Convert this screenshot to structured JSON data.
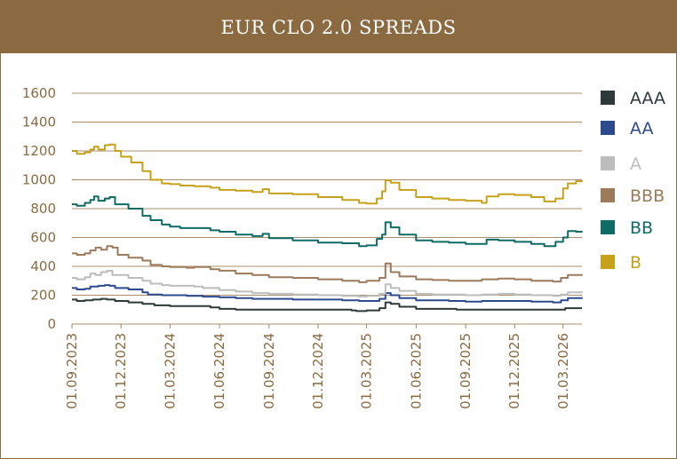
{
  "title": "EUR CLO 2.0 SPREADS",
  "colors": {
    "brand": "#8b6a42",
    "axis_text": "#8b6a42",
    "grid": "#8b6a42"
  },
  "chart_data": {
    "type": "line",
    "title": "EUR CLO 2.0 SPREADS",
    "xlabel": "",
    "ylabel": "",
    "ylim": [
      0,
      1600
    ],
    "yticks": [
      0,
      200,
      400,
      600,
      800,
      1000,
      1200,
      1400,
      1600
    ],
    "xlim": [
      "2023-09-01",
      "2026-04-05"
    ],
    "xticks": [
      {
        "date": "2023-09-01",
        "label": "01.09.2023"
      },
      {
        "date": "2023-12-01",
        "label": "01.12.2023"
      },
      {
        "date": "2024-03-01",
        "label": "01.03.2024"
      },
      {
        "date": "2024-06-01",
        "label": "01.06.2024"
      },
      {
        "date": "2024-09-01",
        "label": "01.09.2024"
      },
      {
        "date": "2024-12-01",
        "label": "01.12.2024"
      },
      {
        "date": "2025-03-01",
        "label": "01.03.2025"
      },
      {
        "date": "2025-06-01",
        "label": "01.06.2025"
      },
      {
        "date": "2025-09-01",
        "label": "01.09.2025"
      },
      {
        "date": "2025-12-01",
        "label": "01.12.2025"
      },
      {
        "date": "2026-03-01",
        "label": "01.03.2026"
      }
    ],
    "grid": "horizontal",
    "legend_position": "right",
    "series": [
      {
        "name": "AAA",
        "color": "#2e3a3a",
        "points": [
          [
            "2023-09-01",
            170
          ],
          [
            "2023-09-10",
            160
          ],
          [
            "2023-09-25",
            165
          ],
          [
            "2023-10-10",
            170
          ],
          [
            "2023-10-25",
            175
          ],
          [
            "2023-11-05",
            170
          ],
          [
            "2023-11-20",
            160
          ],
          [
            "2023-12-15",
            150
          ],
          [
            "2024-01-10",
            140
          ],
          [
            "2024-02-01",
            130
          ],
          [
            "2024-03-01",
            125
          ],
          [
            "2024-04-15",
            125
          ],
          [
            "2024-05-15",
            115
          ],
          [
            "2024-06-01",
            105
          ],
          [
            "2024-07-01",
            100
          ],
          [
            "2024-08-01",
            100
          ],
          [
            "2024-09-01",
            100
          ],
          [
            "2024-10-15",
            100
          ],
          [
            "2024-12-01",
            100
          ],
          [
            "2025-01-15",
            100
          ],
          [
            "2025-02-01",
            95
          ],
          [
            "2025-02-10",
            90
          ],
          [
            "2025-03-01",
            95
          ],
          [
            "2025-03-25",
            110
          ],
          [
            "2025-04-05",
            150
          ],
          [
            "2025-04-15",
            140
          ],
          [
            "2025-05-01",
            120
          ],
          [
            "2025-06-01",
            105
          ],
          [
            "2025-07-15",
            105
          ],
          [
            "2025-08-15",
            100
          ],
          [
            "2025-09-01",
            100
          ],
          [
            "2025-10-01",
            100
          ],
          [
            "2025-11-01",
            100
          ],
          [
            "2025-12-01",
            100
          ],
          [
            "2026-01-01",
            100
          ],
          [
            "2026-02-01",
            100
          ],
          [
            "2026-02-20",
            100
          ],
          [
            "2026-03-05",
            110
          ],
          [
            "2026-04-05",
            110
          ]
        ]
      },
      {
        "name": "AA",
        "color": "#2e4a8e",
        "points": [
          [
            "2023-09-01",
            250
          ],
          [
            "2023-09-10",
            240
          ],
          [
            "2023-09-25",
            245
          ],
          [
            "2023-10-05",
            260
          ],
          [
            "2023-10-20",
            265
          ],
          [
            "2023-11-01",
            270
          ],
          [
            "2023-11-10",
            265
          ],
          [
            "2023-11-20",
            250
          ],
          [
            "2023-12-15",
            240
          ],
          [
            "2024-01-10",
            220
          ],
          [
            "2024-01-20",
            205
          ],
          [
            "2024-02-15",
            200
          ],
          [
            "2024-03-01",
            200
          ],
          [
            "2024-04-01",
            195
          ],
          [
            "2024-05-01",
            190
          ],
          [
            "2024-06-01",
            185
          ],
          [
            "2024-07-01",
            180
          ],
          [
            "2024-08-01",
            175
          ],
          [
            "2024-09-01",
            175
          ],
          [
            "2024-10-15",
            170
          ],
          [
            "2024-12-01",
            170
          ],
          [
            "2025-01-15",
            165
          ],
          [
            "2025-02-15",
            160
          ],
          [
            "2025-03-01",
            160
          ],
          [
            "2025-03-25",
            175
          ],
          [
            "2025-04-05",
            215
          ],
          [
            "2025-04-15",
            200
          ],
          [
            "2025-05-01",
            180
          ],
          [
            "2025-06-01",
            165
          ],
          [
            "2025-07-01",
            165
          ],
          [
            "2025-08-01",
            160
          ],
          [
            "2025-09-01",
            155
          ],
          [
            "2025-10-01",
            160
          ],
          [
            "2025-11-01",
            160
          ],
          [
            "2025-12-01",
            160
          ],
          [
            "2026-01-01",
            155
          ],
          [
            "2026-02-10",
            150
          ],
          [
            "2026-02-25",
            165
          ],
          [
            "2026-03-10",
            180
          ],
          [
            "2026-04-05",
            185
          ]
        ]
      },
      {
        "name": "A",
        "color": "#bdbdbd",
        "points": [
          [
            "2023-09-01",
            320
          ],
          [
            "2023-09-10",
            310
          ],
          [
            "2023-09-25",
            325
          ],
          [
            "2023-10-05",
            350
          ],
          [
            "2023-10-15",
            340
          ],
          [
            "2023-10-25",
            360
          ],
          [
            "2023-11-05",
            370
          ],
          [
            "2023-11-15",
            340
          ],
          [
            "2023-12-15",
            320
          ],
          [
            "2024-01-10",
            300
          ],
          [
            "2024-01-25",
            280
          ],
          [
            "2024-02-15",
            270
          ],
          [
            "2024-03-01",
            265
          ],
          [
            "2024-04-15",
            260
          ],
          [
            "2024-05-01",
            250
          ],
          [
            "2024-06-01",
            235
          ],
          [
            "2024-07-01",
            225
          ],
          [
            "2024-08-01",
            215
          ],
          [
            "2024-09-01",
            210
          ],
          [
            "2024-10-15",
            205
          ],
          [
            "2024-12-01",
            200
          ],
          [
            "2025-01-15",
            195
          ],
          [
            "2025-02-15",
            190
          ],
          [
            "2025-03-01",
            195
          ],
          [
            "2025-03-25",
            210
          ],
          [
            "2025-04-05",
            275
          ],
          [
            "2025-04-15",
            250
          ],
          [
            "2025-05-01",
            230
          ],
          [
            "2025-06-01",
            210
          ],
          [
            "2025-07-01",
            205
          ],
          [
            "2025-08-01",
            205
          ],
          [
            "2025-09-01",
            200
          ],
          [
            "2025-10-01",
            205
          ],
          [
            "2025-11-01",
            210
          ],
          [
            "2025-12-01",
            205
          ],
          [
            "2026-01-01",
            200
          ],
          [
            "2026-02-10",
            195
          ],
          [
            "2026-02-25",
            205
          ],
          [
            "2026-03-10",
            220
          ],
          [
            "2026-04-05",
            225
          ]
        ]
      },
      {
        "name": "BBB",
        "color": "#9b7b5b",
        "points": [
          [
            "2023-09-01",
            490
          ],
          [
            "2023-09-10",
            480
          ],
          [
            "2023-09-25",
            490
          ],
          [
            "2023-10-05",
            510
          ],
          [
            "2023-10-15",
            530
          ],
          [
            "2023-10-25",
            515
          ],
          [
            "2023-11-05",
            540
          ],
          [
            "2023-11-15",
            530
          ],
          [
            "2023-11-25",
            480
          ],
          [
            "2023-12-15",
            460
          ],
          [
            "2024-01-10",
            440
          ],
          [
            "2024-01-25",
            410
          ],
          [
            "2024-02-15",
            400
          ],
          [
            "2024-03-01",
            395
          ],
          [
            "2024-04-01",
            390
          ],
          [
            "2024-04-15",
            395
          ],
          [
            "2024-05-15",
            380
          ],
          [
            "2024-06-01",
            370
          ],
          [
            "2024-07-01",
            350
          ],
          [
            "2024-08-01",
            340
          ],
          [
            "2024-08-20",
            340
          ],
          [
            "2024-09-01",
            325
          ],
          [
            "2024-10-15",
            320
          ],
          [
            "2024-12-01",
            310
          ],
          [
            "2025-01-15",
            300
          ],
          [
            "2025-02-15",
            290
          ],
          [
            "2025-03-01",
            300
          ],
          [
            "2025-03-25",
            320
          ],
          [
            "2025-04-05",
            420
          ],
          [
            "2025-04-15",
            360
          ],
          [
            "2025-05-01",
            330
          ],
          [
            "2025-06-01",
            310
          ],
          [
            "2025-07-01",
            305
          ],
          [
            "2025-08-01",
            300
          ],
          [
            "2025-09-01",
            300
          ],
          [
            "2025-10-01",
            310
          ],
          [
            "2025-11-01",
            315
          ],
          [
            "2025-12-01",
            310
          ],
          [
            "2026-01-01",
            300
          ],
          [
            "2026-02-10",
            295
          ],
          [
            "2026-02-25",
            320
          ],
          [
            "2026-03-10",
            340
          ],
          [
            "2026-04-05",
            345
          ]
        ]
      },
      {
        "name": "BB",
        "color": "#0f6b66",
        "points": [
          [
            "2023-09-01",
            830
          ],
          [
            "2023-09-10",
            820
          ],
          [
            "2023-09-25",
            840
          ],
          [
            "2023-10-05",
            860
          ],
          [
            "2023-10-12",
            885
          ],
          [
            "2023-10-20",
            855
          ],
          [
            "2023-11-01",
            870
          ],
          [
            "2023-11-10",
            880
          ],
          [
            "2023-11-20",
            830
          ],
          [
            "2023-12-15",
            800
          ],
          [
            "2024-01-10",
            750
          ],
          [
            "2024-01-25",
            720
          ],
          [
            "2024-02-15",
            690
          ],
          [
            "2024-03-01",
            675
          ],
          [
            "2024-03-20",
            665
          ],
          [
            "2024-04-15",
            665
          ],
          [
            "2024-05-15",
            650
          ],
          [
            "2024-06-01",
            640
          ],
          [
            "2024-07-01",
            620
          ],
          [
            "2024-08-01",
            610
          ],
          [
            "2024-08-20",
            625
          ],
          [
            "2024-09-01",
            595
          ],
          [
            "2024-10-15",
            580
          ],
          [
            "2024-12-01",
            565
          ],
          [
            "2025-01-15",
            560
          ],
          [
            "2025-02-15",
            540
          ],
          [
            "2025-03-01",
            545
          ],
          [
            "2025-03-20",
            590
          ],
          [
            "2025-03-30",
            620
          ],
          [
            "2025-04-05",
            705
          ],
          [
            "2025-04-15",
            670
          ],
          [
            "2025-05-01",
            620
          ],
          [
            "2025-06-01",
            580
          ],
          [
            "2025-07-01",
            570
          ],
          [
            "2025-08-01",
            565
          ],
          [
            "2025-09-01",
            555
          ],
          [
            "2025-10-01",
            555
          ],
          [
            "2025-10-10",
            585
          ],
          [
            "2025-11-01",
            580
          ],
          [
            "2025-12-01",
            570
          ],
          [
            "2026-01-01",
            555
          ],
          [
            "2026-01-25",
            540
          ],
          [
            "2026-02-15",
            570
          ],
          [
            "2026-03-01",
            600
          ],
          [
            "2026-03-10",
            645
          ],
          [
            "2026-03-25",
            640
          ],
          [
            "2026-04-05",
            635
          ]
        ]
      },
      {
        "name": "B",
        "color": "#c6a11a",
        "points": [
          [
            "2023-09-01",
            1200
          ],
          [
            "2023-09-10",
            1180
          ],
          [
            "2023-09-25",
            1190
          ],
          [
            "2023-10-05",
            1210
          ],
          [
            "2023-10-12",
            1230
          ],
          [
            "2023-10-20",
            1210
          ],
          [
            "2023-11-01",
            1240
          ],
          [
            "2023-11-10",
            1245
          ],
          [
            "2023-11-20",
            1200
          ],
          [
            "2023-12-01",
            1160
          ],
          [
            "2023-12-20",
            1120
          ],
          [
            "2024-01-10",
            1060
          ],
          [
            "2024-01-25",
            1000
          ],
          [
            "2024-02-15",
            975
          ],
          [
            "2024-03-01",
            970
          ],
          [
            "2024-03-20",
            960
          ],
          [
            "2024-04-15",
            955
          ],
          [
            "2024-05-15",
            945
          ],
          [
            "2024-06-01",
            930
          ],
          [
            "2024-07-01",
            925
          ],
          [
            "2024-08-01",
            915
          ],
          [
            "2024-08-20",
            935
          ],
          [
            "2024-09-01",
            905
          ],
          [
            "2024-10-15",
            900
          ],
          [
            "2024-12-01",
            880
          ],
          [
            "2025-01-15",
            860
          ],
          [
            "2025-02-15",
            840
          ],
          [
            "2025-03-01",
            835
          ],
          [
            "2025-03-20",
            870
          ],
          [
            "2025-03-30",
            920
          ],
          [
            "2025-04-05",
            995
          ],
          [
            "2025-04-15",
            980
          ],
          [
            "2025-05-01",
            930
          ],
          [
            "2025-06-01",
            880
          ],
          [
            "2025-07-01",
            870
          ],
          [
            "2025-08-01",
            860
          ],
          [
            "2025-09-01",
            855
          ],
          [
            "2025-10-01",
            840
          ],
          [
            "2025-10-10",
            885
          ],
          [
            "2025-11-01",
            900
          ],
          [
            "2025-12-01",
            895
          ],
          [
            "2026-01-01",
            880
          ],
          [
            "2026-01-25",
            850
          ],
          [
            "2026-02-15",
            870
          ],
          [
            "2026-03-01",
            940
          ],
          [
            "2026-03-10",
            975
          ],
          [
            "2026-03-25",
            990
          ],
          [
            "2026-04-05",
            995
          ]
        ]
      }
    ]
  }
}
